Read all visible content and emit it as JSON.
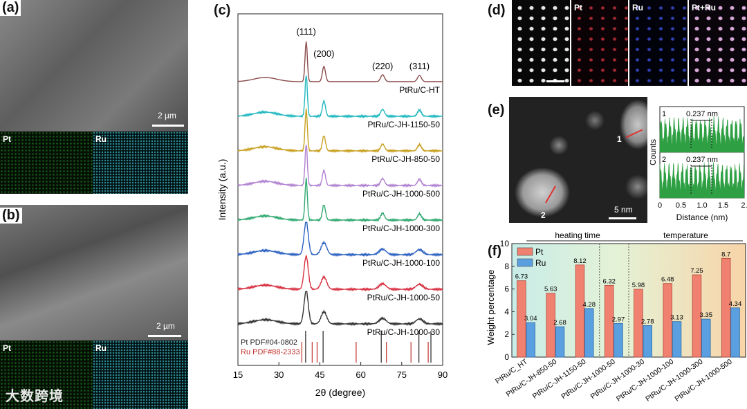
{
  "panels": {
    "a": {
      "label": "(a)",
      "scale": "2 µm",
      "map1": "Pt",
      "map2": "Ru"
    },
    "b": {
      "label": "(b)",
      "scale": "2 µm",
      "map1": "Pt",
      "map2": "Ru"
    },
    "c": {
      "label": "(c)"
    },
    "d": {
      "label": "(d)",
      "maps": [
        "Pt",
        "Ru",
        "Pt+Ru"
      ]
    },
    "e": {
      "label": "(e)",
      "scale": "5 nm",
      "marker1": "1",
      "marker2": "2"
    },
    "f": {
      "label": "(f)"
    }
  },
  "watermark": "大数跨境",
  "colors": {
    "pt": "#f08070",
    "ru": "#5aa0e0",
    "green_profile": "#2ea043"
  },
  "chart_data": [
    {
      "type": "line",
      "id": "xrd",
      "xlabel": "2θ (degree)",
      "ylabel": "Intensity (a.u.)",
      "xlim": [
        15,
        90
      ],
      "xticks": [
        15,
        30,
        45,
        60,
        75,
        90
      ],
      "peaks": [
        {
          "label": "(111)",
          "x": 40
        },
        {
          "label": "(200)",
          "x": 46.5
        },
        {
          "label": "(220)",
          "x": 68
        },
        {
          "label": "(311)",
          "x": 81.5
        }
      ],
      "series": [
        {
          "name": "PtRu/C-HT",
          "color": "#8b4a4a"
        },
        {
          "name": "PtRu/C-JH-1150-50",
          "color": "#20b8c0"
        },
        {
          "name": "PtRu/C-JH-850-50",
          "color": "#c8a020"
        },
        {
          "name": "PtRu/C-JH-1000-500",
          "color": "#b080d0"
        },
        {
          "name": "PtRu/C-JH-1000-300",
          "color": "#30a870"
        },
        {
          "name": "PtRu/C-JH-1000-100",
          "color": "#2a60c0"
        },
        {
          "name": "PtRu/C-JH-1000-50",
          "color": "#d83040"
        },
        {
          "name": "PtRu/C-JH-1000-30",
          "color": "#333333"
        }
      ],
      "references": [
        {
          "name": "Pt PDF#04-0802",
          "color": "#222222",
          "lines": [
            39.8,
            46.2,
            67.5,
            81.3,
            85.7
          ]
        },
        {
          "name": "Ru PDF#88-2333",
          "color": "#c0302a",
          "lines": [
            38.4,
            42.2,
            44.0,
            58.3,
            69.4,
            78.4,
            84.7
          ]
        }
      ]
    },
    {
      "type": "line",
      "id": "profiles",
      "xlabel": "Distance (nm)",
      "ylabel": "Counts",
      "xlim": [
        0,
        2
      ],
      "xticks": [
        "0",
        "0.5",
        "1.0",
        "1.5",
        "2."
      ],
      "profiles": [
        {
          "name": "1",
          "spacing": "0.237 nm"
        },
        {
          "name": "2",
          "spacing": "0.237 nm"
        }
      ]
    },
    {
      "type": "bar",
      "id": "weight",
      "ylabel": "Weight percentage",
      "ylim": [
        0,
        10
      ],
      "yticks": [
        0,
        2,
        4,
        6,
        8,
        10
      ],
      "groups": [
        "heating time",
        "temperature"
      ],
      "categories": [
        "PtRu/C_HT",
        "PtRu/C-JH-850-50",
        "PtRu/C-JH-1150-50",
        "PtRu/C-JH-1000-50",
        "PtRu/C-JH-1000-30",
        "PtRu/C-JH-1000-100",
        "PtRu/C-JH-1000-300",
        "PtRu/C-JH-1000-500"
      ],
      "series": [
        {
          "name": "Pt",
          "values": [
            6.73,
            5.63,
            8.12,
            6.32,
            5.98,
            6.48,
            7.25,
            8.7
          ]
        },
        {
          "name": "Ru",
          "values": [
            3.04,
            2.68,
            4.28,
            2.97,
            2.78,
            3.13,
            3.35,
            4.34
          ]
        }
      ]
    }
  ]
}
